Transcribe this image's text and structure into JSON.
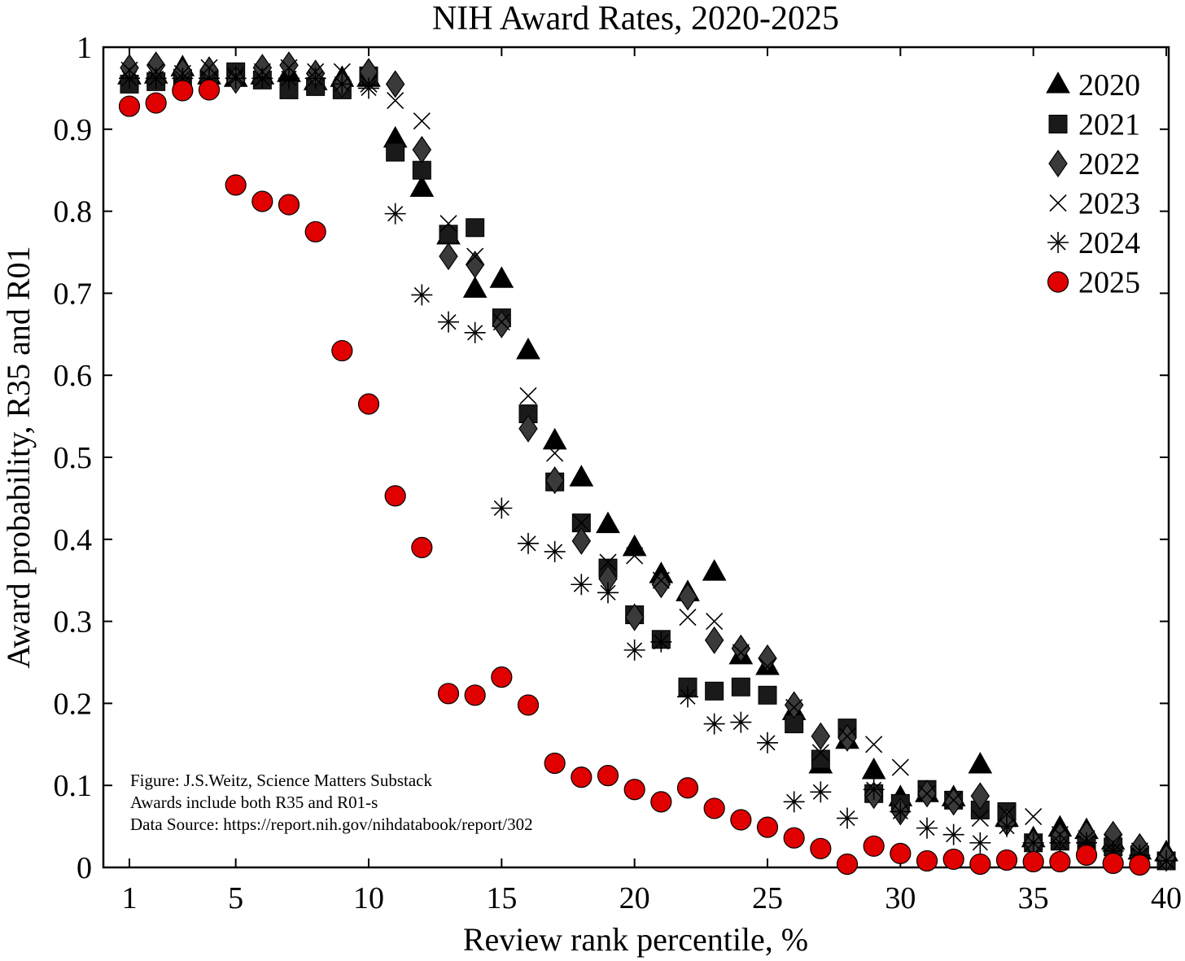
{
  "chart_data": {
    "type": "scatter",
    "title": "NIH Award Rates, 2020-2025",
    "xlabel": "Review rank percentile, %",
    "ylabel": "Award probability, R35 and R01",
    "xlim": [
      0,
      40
    ],
    "ylim": [
      0,
      1
    ],
    "xticks": [
      1,
      5,
      10,
      15,
      20,
      25,
      30,
      35,
      40
    ],
    "yticks": [
      0,
      0.1,
      0.2,
      0.3,
      0.4,
      0.5,
      0.6,
      0.7,
      0.8,
      0.9,
      1
    ],
    "ytick_labels": [
      "0",
      "0.1",
      "0.2",
      "0.3",
      "0.4",
      "0.5",
      "0.6",
      "0.7",
      "0.8",
      "0.9",
      "1"
    ],
    "grid": false,
    "legend_position": "top-right",
    "annotations": [
      "Figure: J.S.Weitz, Science Matters Substack",
      "Awards include both R35 and R01-s",
      "Data Source: https://report.nih.gov/nihdatabook/report/302"
    ],
    "series": [
      {
        "name": "2020",
        "marker": "triangle",
        "color": "#000000",
        "x": [
          1,
          2,
          3,
          4,
          5,
          6,
          7,
          8,
          9,
          10,
          11,
          12,
          13,
          14,
          15,
          16,
          17,
          18,
          19,
          20,
          21,
          22,
          23,
          24,
          25,
          26,
          27,
          28,
          29,
          30,
          31,
          32,
          33,
          34,
          35,
          36,
          37,
          38,
          39,
          40
        ],
        "y": [
          0.965,
          0.966,
          0.975,
          0.965,
          0.962,
          0.965,
          0.968,
          0.958,
          0.962,
          0.962,
          0.888,
          0.828,
          0.77,
          0.705,
          0.717,
          0.63,
          0.52,
          0.475,
          0.418,
          0.39,
          0.357,
          0.335,
          0.36,
          0.258,
          0.245,
          0.19,
          0.125,
          0.155,
          0.118,
          0.085,
          0.09,
          0.085,
          0.125,
          0.06,
          0.035,
          0.048,
          0.045,
          0.032,
          0.02,
          0.018
        ]
      },
      {
        "name": "2021",
        "marker": "square",
        "color": "#1a1a1a",
        "x": [
          1,
          2,
          3,
          4,
          5,
          6,
          7,
          8,
          9,
          10,
          11,
          12,
          13,
          14,
          15,
          16,
          17,
          18,
          19,
          20,
          21,
          22,
          23,
          24,
          25,
          26,
          27,
          28,
          29,
          30,
          31,
          32,
          33,
          34,
          35,
          36,
          37,
          38,
          39,
          40
        ],
        "y": [
          0.955,
          0.958,
          0.962,
          0.96,
          0.97,
          0.96,
          0.948,
          0.952,
          0.948,
          0.965,
          0.872,
          0.85,
          0.772,
          0.78,
          0.67,
          0.553,
          0.47,
          0.42,
          0.365,
          0.308,
          0.278,
          0.22,
          0.215,
          0.22,
          0.21,
          0.175,
          0.132,
          0.17,
          0.09,
          0.078,
          0.095,
          0.082,
          0.07,
          0.068,
          0.03,
          0.032,
          0.028,
          0.025,
          0.015,
          0.008
        ]
      },
      {
        "name": "2022",
        "marker": "diamond",
        "color": "#3a3a3a",
        "x": [
          1,
          2,
          3,
          4,
          5,
          6,
          7,
          8,
          9,
          10,
          11,
          12,
          13,
          14,
          15,
          16,
          17,
          18,
          19,
          20,
          21,
          22,
          23,
          24,
          25,
          26,
          27,
          28,
          29,
          30,
          31,
          32,
          33,
          34,
          35,
          36,
          37,
          38,
          39,
          40
        ],
        "y": [
          0.975,
          0.978,
          0.97,
          0.972,
          0.96,
          0.975,
          0.978,
          0.968,
          0.955,
          0.97,
          0.955,
          0.875,
          0.745,
          0.735,
          0.662,
          0.535,
          0.472,
          0.398,
          0.352,
          0.305,
          0.345,
          0.33,
          0.277,
          0.267,
          0.255,
          0.198,
          0.16,
          0.158,
          0.088,
          0.068,
          0.09,
          0.08,
          0.087,
          0.055,
          0.03,
          0.038,
          0.04,
          0.04,
          0.025,
          0.012
        ]
      },
      {
        "name": "2023",
        "marker": "x",
        "color": "#000000",
        "x": [
          1,
          2,
          3,
          4,
          5,
          6,
          7,
          8,
          9,
          10,
          11,
          12,
          13,
          14,
          15,
          16,
          17,
          18,
          19,
          20,
          21,
          22,
          23,
          24,
          25,
          26,
          27,
          28,
          29,
          30,
          31,
          32,
          33,
          34,
          35,
          36,
          37,
          38,
          39,
          40
        ],
        "y": [
          0.972,
          0.97,
          0.968,
          0.975,
          0.965,
          0.97,
          0.975,
          0.97,
          0.97,
          0.955,
          0.935,
          0.91,
          0.785,
          0.745,
          0.665,
          0.575,
          0.505,
          0.42,
          0.372,
          0.38,
          0.35,
          0.305,
          0.3,
          0.262,
          0.245,
          0.195,
          0.14,
          0.16,
          0.15,
          0.122,
          0.09,
          0.082,
          0.06,
          0.065,
          0.062,
          0.04,
          0.035,
          0.03,
          0.02,
          0.008
        ]
      },
      {
        "name": "2024",
        "marker": "asterisk",
        "color": "#000000",
        "x": [
          1,
          2,
          3,
          4,
          5,
          6,
          7,
          8,
          9,
          10,
          11,
          12,
          13,
          14,
          15,
          16,
          17,
          18,
          19,
          20,
          21,
          22,
          23,
          24,
          25,
          26,
          27,
          28,
          29,
          30,
          31,
          32,
          33,
          34,
          35,
          36,
          37,
          38,
          39,
          40
        ],
        "y": [
          0.962,
          0.962,
          0.962,
          0.962,
          0.962,
          0.962,
          0.962,
          0.962,
          0.955,
          0.95,
          0.797,
          0.698,
          0.665,
          0.652,
          0.438,
          0.395,
          0.385,
          0.345,
          0.335,
          0.265,
          0.275,
          0.208,
          0.175,
          0.177,
          0.152,
          0.08,
          0.092,
          0.06,
          0.095,
          0.068,
          0.048,
          0.04,
          0.03,
          0.05,
          0.03,
          0.03,
          0.03,
          0.02,
          0.015,
          0.008
        ]
      },
      {
        "name": "2025",
        "marker": "circle",
        "color": "#e00000",
        "x": [
          1,
          2,
          3,
          4,
          5,
          6,
          7,
          8,
          9,
          10,
          11,
          12,
          13,
          14,
          15,
          16,
          17,
          18,
          19,
          20,
          21,
          22,
          23,
          24,
          25,
          26,
          27,
          28,
          29,
          30,
          31,
          32,
          33,
          34,
          35,
          36,
          37,
          38,
          39
        ],
        "y": [
          0.928,
          0.932,
          0.947,
          0.948,
          0.832,
          0.812,
          0.808,
          0.775,
          0.63,
          0.565,
          0.453,
          0.39,
          0.212,
          0.21,
          0.232,
          0.198,
          0.127,
          0.11,
          0.112,
          0.095,
          0.08,
          0.097,
          0.072,
          0.058,
          0.049,
          0.036,
          0.023,
          0.004,
          0.026,
          0.017,
          0.008,
          0.01,
          0.004,
          0.009,
          0.007,
          0.007,
          0.015,
          0.005,
          0.003
        ]
      }
    ]
  }
}
